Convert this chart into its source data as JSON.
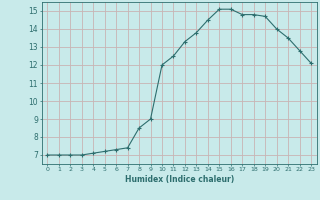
{
  "x": [
    0,
    1,
    2,
    3,
    4,
    5,
    6,
    7,
    8,
    9,
    10,
    11,
    12,
    13,
    14,
    15,
    16,
    17,
    18,
    19,
    20,
    21,
    22,
    23
  ],
  "y": [
    7.0,
    7.0,
    7.0,
    7.0,
    7.1,
    7.2,
    7.3,
    7.4,
    8.5,
    9.0,
    12.0,
    12.5,
    13.3,
    13.8,
    14.5,
    15.1,
    15.1,
    14.8,
    14.8,
    14.7,
    14.0,
    13.5,
    12.8,
    12.1
  ],
  "xlabel": "Humidex (Indice chaleur)",
  "ylim": [
    6.5,
    15.5
  ],
  "xlim": [
    -0.5,
    23.5
  ],
  "yticks": [
    7,
    8,
    9,
    10,
    11,
    12,
    13,
    14,
    15
  ],
  "xticks": [
    0,
    1,
    2,
    3,
    4,
    5,
    6,
    7,
    8,
    9,
    10,
    11,
    12,
    13,
    14,
    15,
    16,
    17,
    18,
    19,
    20,
    21,
    22,
    23
  ],
  "line_color": "#2d6e6e",
  "marker": "+",
  "bg_color": "#c8eaea",
  "grid_major_color": "#c8b4b4",
  "grid_minor_color": "#ddd0d0",
  "tick_color": "#2d6e6e",
  "label_color": "#2d6e6e",
  "spine_color": "#2d6e6e"
}
